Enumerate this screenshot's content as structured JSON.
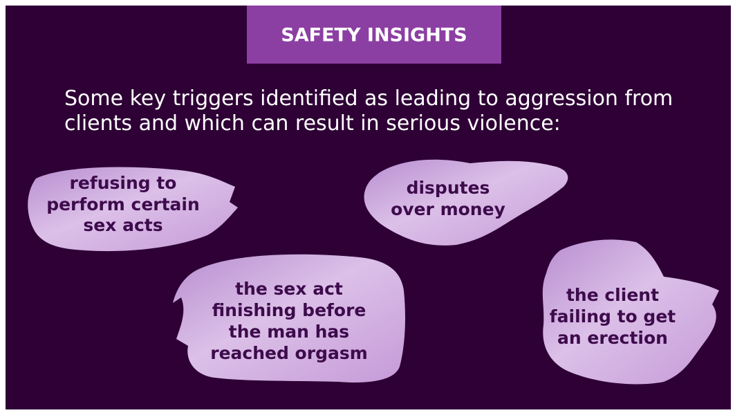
{
  "header": {
    "title": "SAFETY INSIGHTS"
  },
  "intro": {
    "lines": [
      "Some key triggers identified as leading to aggression from",
      "clients and which can result in serious violence:"
    ]
  },
  "triggers": [
    {
      "lines": [
        "refusing to",
        "perform certain",
        "sex acts"
      ]
    },
    {
      "lines": [
        "disputes",
        "over money"
      ]
    },
    {
      "lines": [
        "the sex act",
        "finishing before",
        "the man has",
        "reached orgasm"
      ]
    },
    {
      "lines": [
        "the client",
        "failing to get",
        "an erection"
      ]
    }
  ]
}
